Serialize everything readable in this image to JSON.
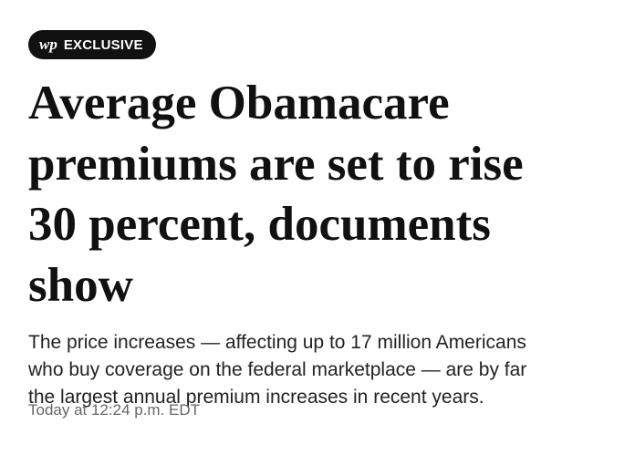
{
  "badge": {
    "logo": "wp",
    "label": "EXCLUSIVE"
  },
  "headline": [
    "Average Obamacare",
    "premiums are set to rise",
    "30 percent, documents",
    "show"
  ],
  "deck": [
    "The price increases — affecting up to 17 million Americans",
    "who buy coverage on the federal marketplace — are by far",
    "the largest annual premium increases in recent years."
  ],
  "timestamp": "Today at 12:24 p.m. EDT"
}
